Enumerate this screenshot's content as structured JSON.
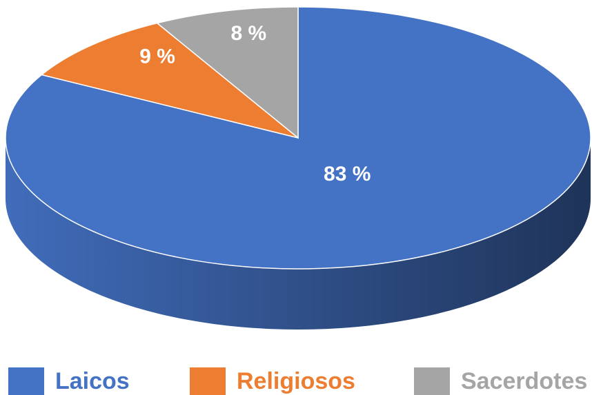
{
  "chart_data": {
    "type": "pie",
    "categories": [
      "Laicos",
      "Religiosos",
      "Sacerdotes"
    ],
    "values": [
      83,
      9,
      8
    ],
    "value_labels": [
      "83 %",
      "9 %",
      "8 %"
    ],
    "colors": [
      "#4472c4",
      "#ed7d31",
      "#a5a5a5"
    ],
    "legend": "bottom"
  }
}
